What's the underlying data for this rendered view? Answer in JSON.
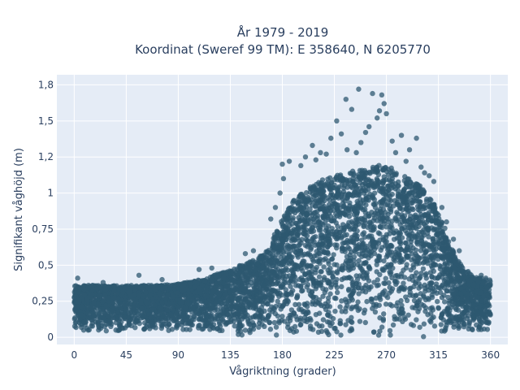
{
  "chart_data": {
    "type": "scatter",
    "title": "År 1979 - 2019",
    "subtitle": "Koordinat (Sweref 99 TM): E 358640, N 6205770",
    "xlabel": "Vågriktning (grader)",
    "ylabel": "Signifikant våghöjd (m)",
    "xlim": [
      -15,
      375
    ],
    "ylim": [
      -0.05,
      1.82
    ],
    "x_ticks": [
      0,
      45,
      90,
      135,
      180,
      225,
      270,
      315,
      360
    ],
    "x_tick_labels": [
      "0",
      "45",
      "90",
      "135",
      "180",
      "225",
      "270",
      "315",
      "360"
    ],
    "y_ticks": [
      0,
      0.25,
      0.5,
      0.75,
      1,
      1.25,
      1.5,
      1.75
    ],
    "y_tick_labels": [
      "0",
      "0,25",
      "0,5",
      "0,75",
      "1",
      "1,2",
      "1,5",
      "1,8"
    ],
    "grid": true,
    "series": [
      {
        "color": "#2e5870",
        "envelope": [
          [
            0,
            0.36
          ],
          [
            20,
            0.36
          ],
          [
            45,
            0.36
          ],
          [
            70,
            0.36
          ],
          [
            90,
            0.37
          ],
          [
            110,
            0.4
          ],
          [
            135,
            0.47
          ],
          [
            150,
            0.52
          ],
          [
            165,
            0.58
          ],
          [
            180,
            0.82
          ],
          [
            190,
            0.95
          ],
          [
            200,
            1.02
          ],
          [
            210,
            1.08
          ],
          [
            225,
            1.12
          ],
          [
            240,
            1.15
          ],
          [
            255,
            1.18
          ],
          [
            270,
            1.2
          ],
          [
            285,
            1.12
          ],
          [
            300,
            1.05
          ],
          [
            315,
            0.88
          ],
          [
            330,
            0.55
          ],
          [
            345,
            0.42
          ],
          [
            360,
            0.4
          ]
        ],
        "outliers": [
          [
            235,
            1.65
          ],
          [
            246,
            1.72
          ],
          [
            258,
            1.69
          ],
          [
            266,
            1.68
          ],
          [
            268,
            1.62
          ],
          [
            264,
            1.57
          ],
          [
            240,
            1.58
          ],
          [
            227,
            1.5
          ],
          [
            255,
            1.46
          ],
          [
            252,
            1.42
          ],
          [
            270,
            1.55
          ],
          [
            262,
            1.52
          ],
          [
            222,
            1.38
          ],
          [
            231,
            1.41
          ],
          [
            248,
            1.35
          ],
          [
            275,
            1.36
          ],
          [
            283,
            1.4
          ],
          [
            290,
            1.3
          ],
          [
            296,
            1.38
          ],
          [
            206,
            1.33
          ],
          [
            213,
            1.28
          ],
          [
            200,
            1.25
          ],
          [
            186,
            1.22
          ],
          [
            180,
            1.2
          ],
          [
            196,
            1.19
          ],
          [
            209,
            1.23
          ],
          [
            218,
            1.27
          ],
          [
            236,
            1.3
          ],
          [
            244,
            1.28
          ],
          [
            278,
            1.28
          ],
          [
            287,
            1.22
          ],
          [
            300,
            1.18
          ],
          [
            307,
            1.12
          ],
          [
            311,
            1.08
          ],
          [
            303,
            1.14
          ],
          [
            181,
            1.1
          ],
          [
            178,
            1.0
          ],
          [
            174,
            0.9
          ],
          [
            170,
            0.82
          ],
          [
            155,
            0.6
          ],
          [
            148,
            0.58
          ],
          [
            119,
            0.48
          ],
          [
            108,
            0.47
          ],
          [
            56,
            0.43
          ],
          [
            76,
            0.4
          ],
          [
            25,
            0.38
          ],
          [
            3,
            0.41
          ],
          [
            333,
            0.6
          ],
          [
            328,
            0.68
          ],
          [
            340,
            0.45
          ],
          [
            318,
            0.9
          ],
          [
            322,
            0.8
          ],
          [
            352,
            0.43
          ],
          [
            356,
            0.41
          ]
        ]
      }
    ]
  }
}
